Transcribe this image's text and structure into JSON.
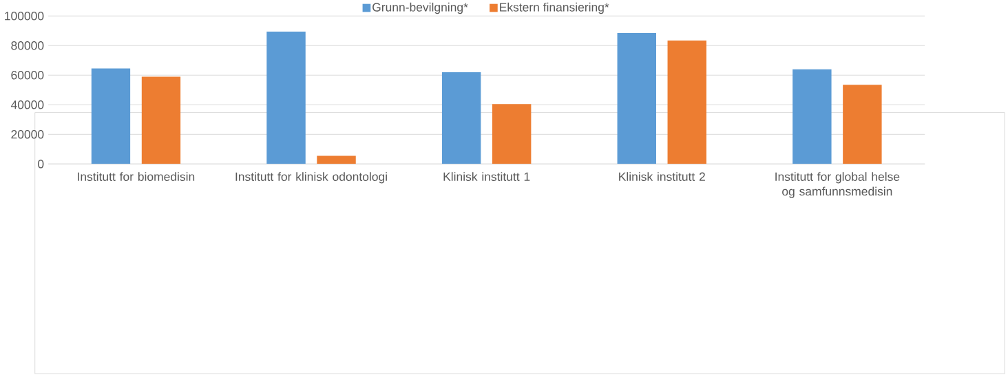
{
  "chart_data": {
    "type": "bar",
    "categories": [
      "Institutt for biomedisin",
      "Institutt for klinisk odontologi",
      "Klinisk institutt 1",
      "Klinisk institutt 2",
      "Institutt for global helse og samfunnsmedisin"
    ],
    "series": [
      {
        "name": "Grunn-bevilgning*",
        "color": "#5b9bd5",
        "values": [
          64500,
          89500,
          62000,
          88500,
          64000
        ]
      },
      {
        "name": "Ekstern finansiering*",
        "color": "#ed7d31",
        "values": [
          59000,
          5500,
          40500,
          83500,
          53500
        ]
      }
    ],
    "ylim": [
      0,
      100000
    ],
    "yticks": [
      0,
      20000,
      40000,
      60000,
      80000,
      100000
    ],
    "grid": "y",
    "legend": "top"
  }
}
